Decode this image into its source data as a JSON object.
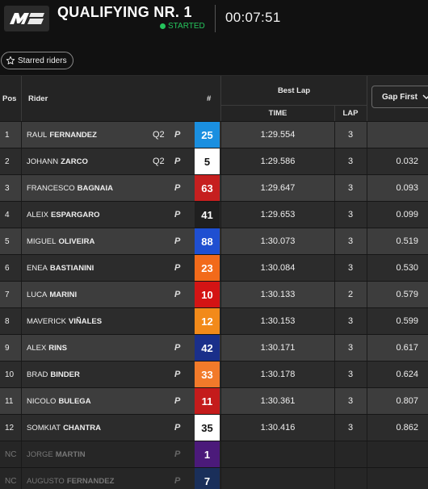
{
  "header": {
    "logo_text": "MGP",
    "title": "QUALIFYING NR. 1",
    "status": "STARTED",
    "timer": "00:07:51"
  },
  "filter": {
    "starred_label": "Starred riders"
  },
  "table_header": {
    "pos": "Pos",
    "rider": "Rider",
    "number": "#",
    "best_lap": "Best Lap",
    "time": "TIME",
    "lap": "LAP",
    "gap_select": "Gap First"
  },
  "colors": {
    "status_green": "#25c45c",
    "ducati_red": "#cc1d1d",
    "yamaha_blue": "#1f4fd1",
    "ktm_orange": "#f26a1a",
    "honda_darkred": "#c41b1b",
    "white": "#ffffff",
    "aprilia_black": "#1e1e1e",
    "navy": "#1a2f8a",
    "purple": "#4b1a7a"
  },
  "rows": [
    {
      "pos": "1",
      "first": "RAUL",
      "last": "FERNANDEZ",
      "q2": "Q2",
      "tyre": "P",
      "number": "25",
      "num_bg": "#1a8fe0",
      "num_fg": "#ffffff",
      "time": "1:29.554",
      "lap": "3",
      "gap": "",
      "state": "in"
    },
    {
      "pos": "2",
      "first": "JOHANN",
      "last": "ZARCO",
      "q2": "Q2",
      "tyre": "P",
      "number": "5",
      "num_bg": "#ffffff",
      "num_fg": "#111111",
      "time": "1:29.586",
      "lap": "3",
      "gap": "0.032",
      "state": "in"
    },
    {
      "pos": "3",
      "first": "FRANCESCO",
      "last": "BAGNAIA",
      "q2": "",
      "tyre": "P",
      "number": "63",
      "num_bg": "#c61f1f",
      "num_fg": "#ffffff",
      "time": "1:29.647",
      "lap": "3",
      "gap": "0.093",
      "state": "in"
    },
    {
      "pos": "4",
      "first": "ALEIX",
      "last": "ESPARGARO",
      "q2": "",
      "tyre": "P",
      "number": "41",
      "num_bg": "#1f1f1f",
      "num_fg": "#ffffff",
      "time": "1:29.653",
      "lap": "3",
      "gap": "0.099",
      "state": "in"
    },
    {
      "pos": "5",
      "first": "MIGUEL",
      "last": "OLIVEIRA",
      "q2": "",
      "tyre": "P",
      "number": "88",
      "num_bg": "#1f4fd1",
      "num_fg": "#ffffff",
      "time": "1:30.073",
      "lap": "3",
      "gap": "0.519",
      "state": "in"
    },
    {
      "pos": "6",
      "first": "ENEA",
      "last": "BASTIANINI",
      "q2": "",
      "tyre": "P",
      "number": "23",
      "num_bg": "#f26a1a",
      "num_fg": "#ffffff",
      "time": "1:30.084",
      "lap": "3",
      "gap": "0.530",
      "state": "in"
    },
    {
      "pos": "7",
      "first": "LUCA",
      "last": "MARINI",
      "q2": "",
      "tyre": "P",
      "number": "10",
      "num_bg": "#d41414",
      "num_fg": "#ffffff",
      "time": "1:30.133",
      "lap": "2",
      "gap": "0.579",
      "state": "in"
    },
    {
      "pos": "8",
      "first": "MAVERICK",
      "last": "VIÑALES",
      "q2": "",
      "tyre": "",
      "number": "12",
      "num_bg": "#f28a1a",
      "num_fg": "#ffffff",
      "time": "1:30.153",
      "lap": "3",
      "gap": "0.599",
      "state": "in"
    },
    {
      "pos": "9",
      "first": "ALEX",
      "last": "RINS",
      "q2": "",
      "tyre": "P",
      "number": "42",
      "num_bg": "#1a2f8a",
      "num_fg": "#ffffff",
      "time": "1:30.171",
      "lap": "3",
      "gap": "0.617",
      "state": "in"
    },
    {
      "pos": "10",
      "first": "BRAD",
      "last": "BINDER",
      "q2": "",
      "tyre": "P",
      "number": "33",
      "num_bg": "#f27a2a",
      "num_fg": "#ffffff",
      "time": "1:30.178",
      "lap": "3",
      "gap": "0.624",
      "state": "in"
    },
    {
      "pos": "11",
      "first": "NICOLO",
      "last": "BULEGA",
      "q2": "",
      "tyre": "P",
      "number": "11",
      "num_bg": "#c41b1b",
      "num_fg": "#ffffff",
      "time": "1:30.361",
      "lap": "3",
      "gap": "0.807",
      "state": "in"
    },
    {
      "pos": "12",
      "first": "SOMKIAT",
      "last": "CHANTRA",
      "q2": "",
      "tyre": "P",
      "number": "35",
      "num_bg": "#ffffff",
      "num_fg": "#111111",
      "time": "1:30.416",
      "lap": "3",
      "gap": "0.862",
      "state": "in"
    },
    {
      "pos": "NC",
      "first": "JORGE",
      "last": "MARTIN",
      "q2": "",
      "tyre": "P",
      "number": "1",
      "num_bg": "#4b1a7a",
      "num_fg": "#ffffff",
      "time": "",
      "lap": "",
      "gap": "",
      "state": "out"
    },
    {
      "pos": "NC",
      "first": "AUGUSTO",
      "last": "FERNANDEZ",
      "q2": "",
      "tyre": "P",
      "number": "7",
      "num_bg": "#1a2f5a",
      "num_fg": "#ffffff",
      "time": "",
      "lap": "",
      "gap": "",
      "state": "out"
    }
  ]
}
